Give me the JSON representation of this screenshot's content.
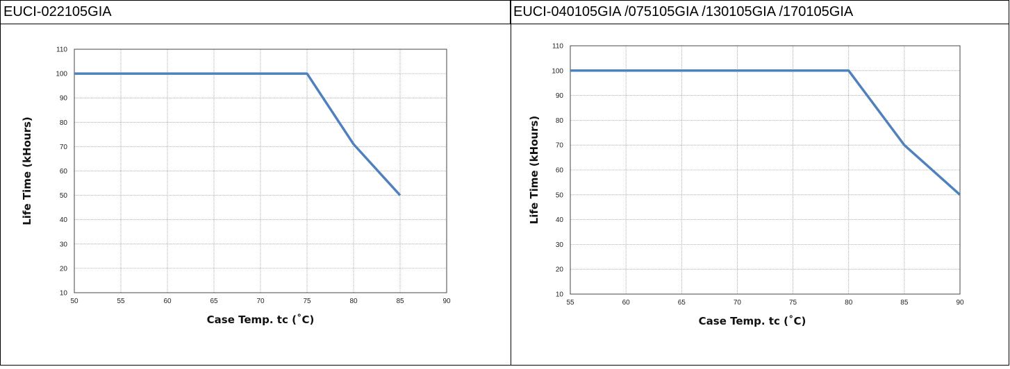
{
  "header": {
    "left_title": "EUCI-022105GIA",
    "right_title": "EUCI-040105GIA /075105GIA /130105GIA /170105GIA"
  },
  "colors": {
    "line": "#4f81bd",
    "grid": "#9a9a9a",
    "axis": "#444444"
  },
  "chart_data": [
    {
      "type": "line",
      "xlabel": "Case Temp. tc (˚C)",
      "ylabel": "Life Time (kHours)",
      "xlim": [
        50,
        90
      ],
      "ylim": [
        10,
        110
      ],
      "xticks": [
        50,
        55,
        60,
        65,
        70,
        75,
        80,
        85,
        90
      ],
      "yticks": [
        10,
        20,
        30,
        40,
        50,
        60,
        70,
        80,
        90,
        100,
        110
      ],
      "grid": true,
      "series": [
        {
          "x": [
            50,
            75,
            80,
            85
          ],
          "y": [
            100,
            100,
            71,
            50
          ]
        }
      ]
    },
    {
      "type": "line",
      "xlabel": "Case Temp. tc (˚C)",
      "ylabel": "Life Time (kHours)",
      "xlim": [
        55,
        90
      ],
      "ylim": [
        10,
        110
      ],
      "xticks": [
        55,
        60,
        65,
        70,
        75,
        80,
        85,
        90
      ],
      "yticks": [
        10,
        20,
        30,
        40,
        50,
        60,
        70,
        80,
        90,
        100,
        110
      ],
      "grid": true,
      "series": [
        {
          "x": [
            55,
            80,
            85,
            90
          ],
          "y": [
            100,
            100,
            70,
            50
          ]
        }
      ]
    }
  ]
}
